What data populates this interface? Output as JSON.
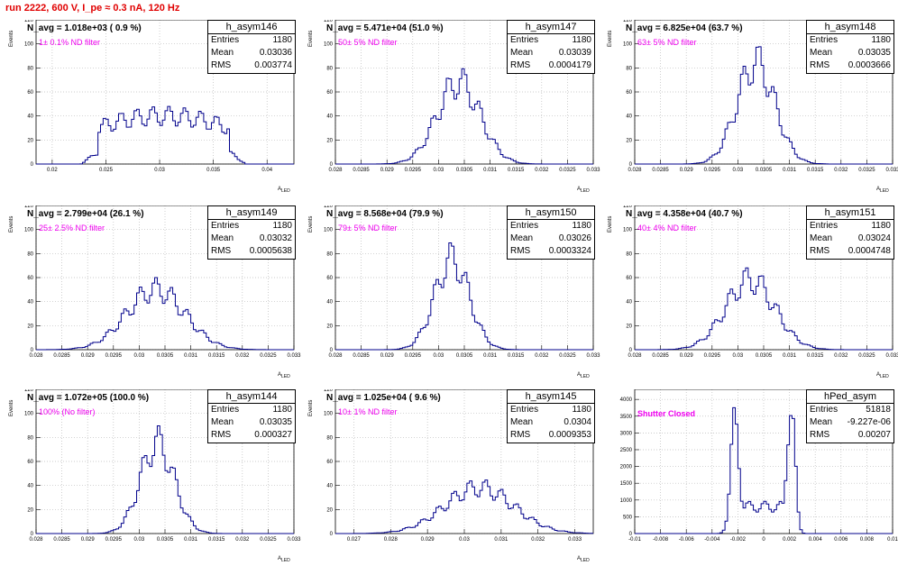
{
  "run_title": "run 2222,   600 V, I_pe ≈ 0.3 nA, 120 Hz",
  "stat_labels": {
    "entries": "Entries",
    "mean": "Mean",
    "rms": "RMS"
  },
  "colors": {
    "hist": "#00008b",
    "filter_text": "#ee00ee",
    "title": "#e00000",
    "grid": "#bbbbbb"
  },
  "chart_data": [
    {
      "type": "histogram",
      "hist_name": "h_asym146",
      "navg_text": "N_avg = 1.018e+03 ( 0.9 %)",
      "filter_text": "1± 0.1% ND filter",
      "entries": "1180",
      "mean": "0.03036",
      "rms": "0.003774",
      "xlabel": "A",
      "xlabel_sub": "LED",
      "ylabel": "Events",
      "xlim": [
        0.0185,
        0.0425
      ],
      "ylim": [
        0,
        120
      ],
      "xticks": [
        0.02,
        0.025,
        0.03,
        0.035,
        0.04
      ],
      "xticklabels": [
        "0.02",
        "0.025",
        "0.03",
        "0.035",
        "0.04"
      ],
      "yticks": [
        0,
        20,
        40,
        60,
        80,
        100,
        120
      ],
      "yticklabels": [
        "0",
        "20",
        "40",
        "60",
        "80",
        "100",
        "120"
      ],
      "profile": {
        "shape": "flat",
        "mean": 0.03036,
        "sigma": 0.003774,
        "peak": 40
      },
      "grid": true
    },
    {
      "type": "histogram",
      "hist_name": "h_asym147",
      "navg_text": "N_avg = 5.471e+04 (51.0 %)",
      "filter_text": "50± 5% ND filter",
      "entries": "1180",
      "mean": "0.03039",
      "rms": "0.0004179",
      "xlabel": "A",
      "xlabel_sub": "LED",
      "ylabel": "Events",
      "xlim": [
        0.028,
        0.033
      ],
      "ylim": [
        0,
        120
      ],
      "xticks": [
        0.028,
        0.0285,
        0.029,
        0.0295,
        0.03,
        0.0305,
        0.031,
        0.0315,
        0.032,
        0.0325,
        0.033
      ],
      "xticklabels": [
        "0.028",
        "0.0285",
        "0.029",
        "0.0295",
        "0.03",
        "0.0305",
        "0.031",
        "0.0315",
        "0.032",
        "0.0325",
        "0.033"
      ],
      "yticks": [
        0,
        20,
        40,
        60,
        80,
        100,
        120
      ],
      "yticklabels": [
        "0",
        "20",
        "40",
        "60",
        "80",
        "100",
        "120"
      ],
      "profile": {
        "shape": "gauss",
        "mean": 0.03039,
        "sigma": 0.0004179,
        "peak": 68
      },
      "grid": true
    },
    {
      "type": "histogram",
      "hist_name": "h_asym148",
      "navg_text": "N_avg = 6.825e+04 (63.7 %)",
      "filter_text": "63± 5% ND filter",
      "entries": "1180",
      "mean": "0.03035",
      "rms": "0.0003666",
      "xlabel": "A",
      "xlabel_sub": "LED",
      "ylabel": "Events",
      "xlim": [
        0.028,
        0.033
      ],
      "ylim": [
        0,
        120
      ],
      "xticks": [
        0.028,
        0.0285,
        0.029,
        0.0295,
        0.03,
        0.0305,
        0.031,
        0.0315,
        0.032,
        0.0325,
        0.033
      ],
      "xticklabels": [
        "0.028",
        "0.0285",
        "0.029",
        "0.0295",
        "0.03",
        "0.0305",
        "0.031",
        "0.0315",
        "0.032",
        "0.0325",
        "0.033"
      ],
      "yticks": [
        0,
        20,
        40,
        60,
        80,
        100,
        120
      ],
      "yticklabels": [
        "0",
        "20",
        "40",
        "60",
        "80",
        "100",
        "120"
      ],
      "profile": {
        "shape": "gauss",
        "mean": 0.03035,
        "sigma": 0.0003666,
        "peak": 84
      },
      "grid": true
    },
    {
      "type": "histogram",
      "hist_name": "h_asym149",
      "navg_text": "N_avg = 2.799e+04 (26.1 %)",
      "filter_text": "25± 2.5% ND filter",
      "entries": "1180",
      "mean": "0.03032",
      "rms": "0.0005638",
      "xlabel": "A",
      "xlabel_sub": "LED",
      "ylabel": "Events",
      "xlim": [
        0.028,
        0.033
      ],
      "ylim": [
        0,
        120
      ],
      "xticks": [
        0.028,
        0.0285,
        0.029,
        0.0295,
        0.03,
        0.0305,
        0.031,
        0.0315,
        0.032,
        0.0325,
        0.033
      ],
      "xticklabels": [
        "0.028",
        "0.0285",
        "0.029",
        "0.0295",
        "0.03",
        "0.0305",
        "0.031",
        "0.0315",
        "0.032",
        "0.0325",
        "0.033"
      ],
      "yticks": [
        0,
        20,
        40,
        60,
        80,
        100,
        120
      ],
      "yticklabels": [
        "0",
        "20",
        "40",
        "60",
        "80",
        "100",
        "120"
      ],
      "profile": {
        "shape": "gauss",
        "mean": 0.03032,
        "sigma": 0.0005638,
        "peak": 50
      },
      "grid": true
    },
    {
      "type": "histogram",
      "hist_name": "h_asym150",
      "navg_text": "N_avg = 8.568e+04 (79.9 %)",
      "filter_text": "79± 5% ND filter",
      "entries": "1180",
      "mean": "0.03026",
      "rms": "0.0003324",
      "xlabel": "A",
      "xlabel_sub": "LED",
      "ylabel": "Events",
      "xlim": [
        0.028,
        0.033
      ],
      "ylim": [
        0,
        120
      ],
      "xticks": [
        0.028,
        0.0285,
        0.029,
        0.0295,
        0.03,
        0.0305,
        0.031,
        0.0315,
        0.032,
        0.0325,
        0.033
      ],
      "xticklabels": [
        "0.028",
        "0.0285",
        "0.029",
        "0.0295",
        "0.03",
        "0.0305",
        "0.031",
        "0.0315",
        "0.032",
        "0.0325",
        "0.033"
      ],
      "yticks": [
        0,
        20,
        40,
        60,
        80,
        100,
        120
      ],
      "yticklabels": [
        "0",
        "20",
        "40",
        "60",
        "80",
        "100",
        "120"
      ],
      "profile": {
        "shape": "gauss",
        "mean": 0.03026,
        "sigma": 0.0003324,
        "peak": 75
      },
      "grid": true
    },
    {
      "type": "histogram",
      "hist_name": "h_asym151",
      "navg_text": "N_avg = 4.358e+04 (40.7 %)",
      "filter_text": "40± 4% ND filter",
      "entries": "1180",
      "mean": "0.03024",
      "rms": "0.0004748",
      "xlabel": "A",
      "xlabel_sub": "LED",
      "ylabel": "Events",
      "xlim": [
        0.028,
        0.033
      ],
      "ylim": [
        0,
        120
      ],
      "xticks": [
        0.028,
        0.0285,
        0.029,
        0.0295,
        0.03,
        0.0305,
        0.031,
        0.0315,
        0.032,
        0.0325,
        0.033
      ],
      "xticklabels": [
        "0.028",
        "0.0285",
        "0.029",
        "0.0295",
        "0.03",
        "0.0305",
        "0.031",
        "0.0315",
        "0.032",
        "0.0325",
        "0.033"
      ],
      "yticks": [
        0,
        20,
        40,
        60,
        80,
        100,
        120
      ],
      "yticklabels": [
        "0",
        "20",
        "40",
        "60",
        "80",
        "100",
        "120"
      ],
      "profile": {
        "shape": "gauss",
        "mean": 0.03024,
        "sigma": 0.0004748,
        "peak": 58
      },
      "grid": true
    },
    {
      "type": "histogram",
      "hist_name": "h_asym144",
      "navg_text": "N_avg = 1.072e+05 (100.0 %)",
      "filter_text": "100% (No filter)",
      "entries": "1180",
      "mean": "0.03035",
      "rms": "0.000327",
      "xlabel": "A",
      "xlabel_sub": "LED",
      "ylabel": "Events",
      "xlim": [
        0.028,
        0.033
      ],
      "ylim": [
        0,
        120
      ],
      "xticks": [
        0.028,
        0.0285,
        0.029,
        0.0295,
        0.03,
        0.0305,
        0.031,
        0.0315,
        0.032,
        0.0325,
        0.033
      ],
      "xticklabels": [
        "0.028",
        "0.0285",
        "0.029",
        "0.0295",
        "0.03",
        "0.0305",
        "0.031",
        "0.0315",
        "0.032",
        "0.0325",
        "0.033"
      ],
      "yticks": [
        0,
        20,
        40,
        60,
        80,
        100,
        120
      ],
      "yticklabels": [
        "0",
        "20",
        "40",
        "60",
        "80",
        "100",
        "120"
      ],
      "profile": {
        "shape": "gauss",
        "mean": 0.03035,
        "sigma": 0.000327,
        "peak": 75
      },
      "grid": true
    },
    {
      "type": "histogram",
      "hist_name": "h_asym145",
      "navg_text": "N_avg = 1.025e+04 ( 9.6 %)",
      "filter_text": "10± 1% ND filter",
      "entries": "1180",
      "mean": "0.0304",
      "rms": "0.0009353",
      "xlabel": "A",
      "xlabel_sub": "LED",
      "ylabel": "Events",
      "xlim": [
        0.0265,
        0.0335
      ],
      "ylim": [
        0,
        120
      ],
      "xticks": [
        0.027,
        0.028,
        0.029,
        0.03,
        0.031,
        0.032,
        0.033
      ],
      "xticklabels": [
        "0.027",
        "0.028",
        "0.029",
        "0.03",
        "0.031",
        "0.032",
        "0.033"
      ],
      "yticks": [
        0,
        20,
        40,
        60,
        80,
        100,
        120
      ],
      "yticklabels": [
        "0",
        "20",
        "40",
        "60",
        "80",
        "100",
        "120"
      ],
      "profile": {
        "shape": "gauss",
        "mean": 0.0304,
        "sigma": 0.0009353,
        "peak": 38
      },
      "grid": true
    },
    {
      "type": "histogram",
      "hist_name": "hPed_asym",
      "navg_text": "",
      "filter_text": "Shutter Closed",
      "entries": "51818",
      "mean": "-9.227e-06",
      "rms": "0.00207",
      "xlabel": "",
      "xlabel_sub": "",
      "ylabel": "",
      "xlim": [
        -0.01,
        0.01
      ],
      "ylim": [
        0,
        4300
      ],
      "xticks": [
        -0.01,
        -0.008,
        -0.006,
        -0.004,
        -0.002,
        0,
        0.002,
        0.004,
        0.006,
        0.008,
        0.01
      ],
      "xticklabels": [
        "-0.01",
        "-0.008",
        "-0.006",
        "-0.004",
        "-0.002",
        "0",
        "0.002",
        "0.004",
        "0.006",
        "0.008",
        "0.01"
      ],
      "yticks": [
        0,
        500,
        1000,
        1500,
        2000,
        2500,
        3000,
        3500,
        4000
      ],
      "yticklabels": [
        "0",
        "500",
        "1000",
        "1500",
        "2000",
        "2500",
        "3000",
        "3500",
        "4000"
      ],
      "profile": {
        "shape": "double",
        "m1": -0.0022,
        "s1": 0.00035,
        "p1": 3300,
        "m2": 0.0021,
        "s2": 0.0003,
        "p2": 4100,
        "base": 800
      },
      "grid": true
    }
  ]
}
